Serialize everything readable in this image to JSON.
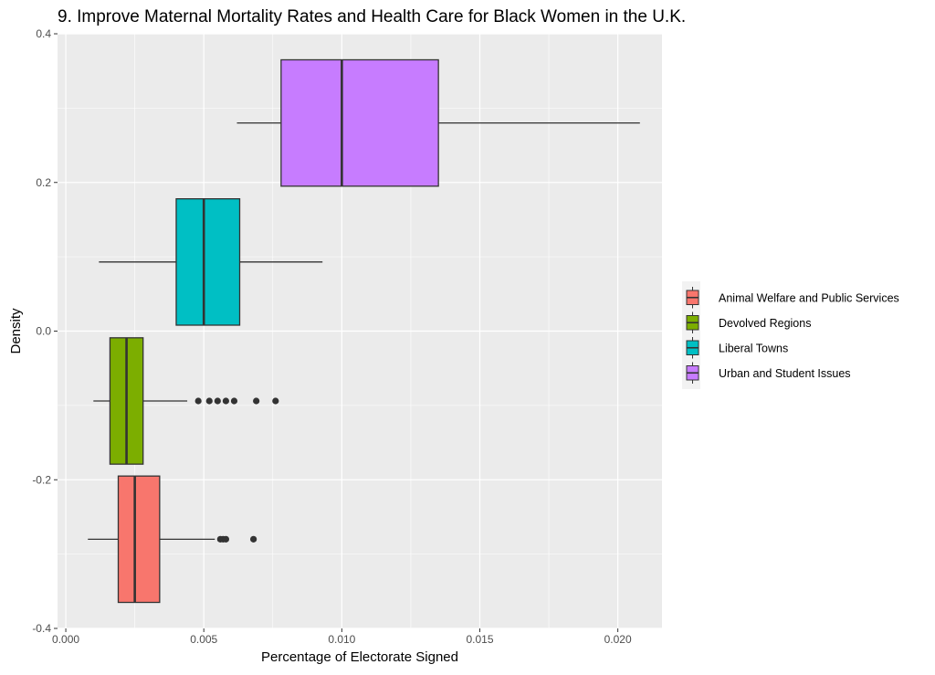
{
  "chart_data": {
    "type": "boxplot",
    "title": "9. Improve Maternal Mortality Rates and Health Care for Black Women in the U.K.",
    "xlabel": "Percentage of Electorate Signed",
    "ylabel": "Density",
    "xlim": [
      -0.0003,
      0.0216
    ],
    "ylim": [
      -0.4,
      0.4
    ],
    "x_ticks": [
      0.0,
      0.005,
      0.01,
      0.015,
      0.02
    ],
    "x_tick_labels": [
      "0.000",
      "0.005",
      "0.010",
      "0.015",
      "0.020"
    ],
    "y_ticks": [
      -0.4,
      -0.2,
      0.0,
      0.2,
      0.4
    ],
    "y_tick_labels": [
      "-0.4",
      "-0.2",
      "0.0",
      "0.2",
      "0.4"
    ],
    "grid": true,
    "legend_position": "right",
    "series": [
      {
        "name": "Animal Welfare and Public Services",
        "color": "#F8766D",
        "y_center": -0.28,
        "y_bottom": -0.365,
        "y_top": -0.195,
        "whisker_low": 0.0008,
        "q1": 0.0019,
        "median": 0.0025,
        "q3": 0.0034,
        "whisker_high": 0.0054,
        "outliers": [
          0.0056,
          0.0057,
          0.0058,
          0.0068
        ]
      },
      {
        "name": "Devolved Regions",
        "color": "#7CAE00",
        "y_center": -0.094,
        "y_bottom": -0.179,
        "y_top": -0.009,
        "whisker_low": 0.001,
        "q1": 0.0016,
        "median": 0.0022,
        "q3": 0.0028,
        "whisker_high": 0.0044,
        "outliers": [
          0.0048,
          0.0052,
          0.0055,
          0.0058,
          0.0061,
          0.0069,
          0.0076
        ]
      },
      {
        "name": "Liberal Towns",
        "color": "#00BFC4",
        "y_center": 0.093,
        "y_bottom": 0.008,
        "y_top": 0.178,
        "whisker_low": 0.0012,
        "q1": 0.004,
        "median": 0.005,
        "q3": 0.0063,
        "whisker_high": 0.0093,
        "outliers": []
      },
      {
        "name": "Urban and Student Issues",
        "color": "#C77CFF",
        "y_center": 0.28,
        "y_bottom": 0.195,
        "y_top": 0.365,
        "whisker_low": 0.0062,
        "q1": 0.0078,
        "median": 0.01,
        "q3": 0.0135,
        "whisker_high": 0.0208,
        "outliers": []
      }
    ]
  }
}
